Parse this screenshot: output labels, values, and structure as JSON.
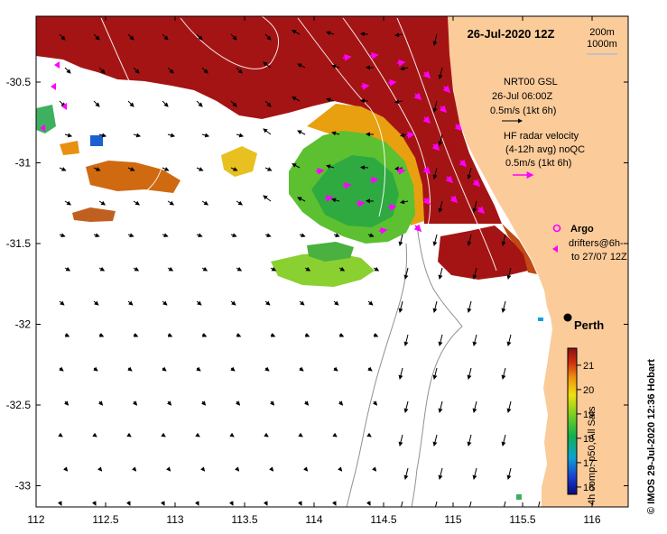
{
  "title": "26-Jul-2020 12Z",
  "depth_legend": {
    "line1": "200m",
    "line2": "1000m"
  },
  "gsl_legend": {
    "name": "NRT00 GSL",
    "time": "26-Jul 06:00Z",
    "scale": "0.5m/s (1kt 6h)"
  },
  "hf_legend": {
    "line1": "HF radar velocity",
    "line2": "(4-12h avg) noQC",
    "scale": "0.5m/s (1kt 6h)"
  },
  "argo_label": "Argo",
  "drifters_legend": {
    "line1": "drifters@6h-",
    "line2": "to 27/07 12Z"
  },
  "city_label": "Perth",
  "colorbar": {
    "ticks": [
      "21",
      "20",
      "19",
      "18",
      "17",
      "16"
    ],
    "label": "4h comp. p50, All Sats",
    "min": 15.7,
    "max": 21.7
  },
  "credit": "© IMOS 29-Jul-2020 12:36 Hobart",
  "x_ticks": [
    "112",
    "112.5",
    "113",
    "113.5",
    "114",
    "114.5",
    "115",
    "115.5",
    "116"
  ],
  "y_ticks": [
    "-30.5",
    "-31",
    "-31.5",
    "-32",
    "-32.5",
    "-33"
  ],
  "colors": {
    "land": "#FBCB9A",
    "hot": "#A51414",
    "coast": "#909090",
    "vector": "#000000",
    "hf": "#FF00FF"
  }
}
